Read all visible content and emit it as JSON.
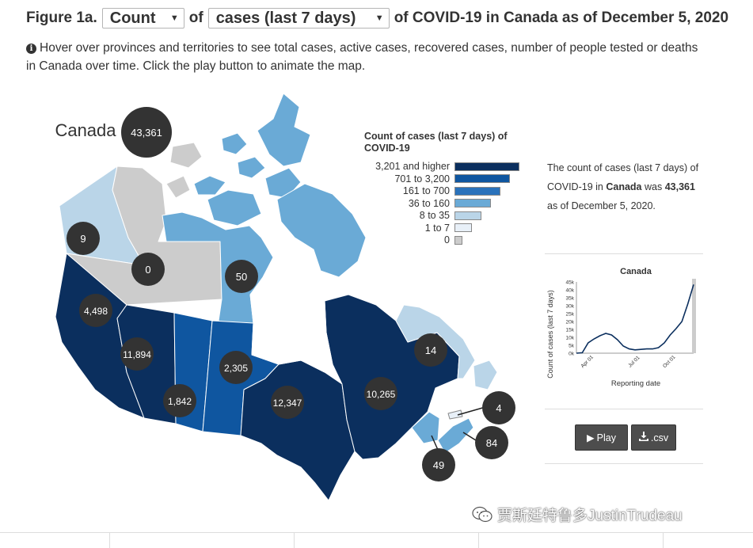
{
  "header": {
    "figure_label": "Figure 1a.",
    "measure_select": "Count",
    "of_text": "of",
    "metric_select": "cases (last 7 days)",
    "title_rest": "of COVID-19 in Canada as of December 5, 2020"
  },
  "subtitle": "Hover over provinces and territories to see total cases, active cases, recovered cases, number of people tested or deaths in Canada over time. Click the play button to animate the map.",
  "map": {
    "country_name": "Canada",
    "country_total": "43,361",
    "regions": [
      {
        "name": "Yukon",
        "value": "9",
        "category": "8 to 35"
      },
      {
        "name": "Northwest Territories",
        "value": "0",
        "category": "0"
      },
      {
        "name": "Nunavut",
        "value": "50",
        "category": "36 to 160"
      },
      {
        "name": "British Columbia",
        "value": "4,498",
        "category": "3,201 and higher"
      },
      {
        "name": "Alberta",
        "value": "11,894",
        "category": "3,201 and higher"
      },
      {
        "name": "Saskatchewan",
        "value": "1,842",
        "category": "701 to 3,200"
      },
      {
        "name": "Manitoba",
        "value": "2,305",
        "category": "701 to 3,200"
      },
      {
        "name": "Ontario",
        "value": "12,347",
        "category": "3,201 and higher"
      },
      {
        "name": "Quebec",
        "value": "10,265",
        "category": "3,201 and higher"
      },
      {
        "name": "Newfoundland and Labrador",
        "value": "14",
        "category": "8 to 35"
      },
      {
        "name": "Prince Edward Island",
        "value": "4",
        "category": "1 to 7"
      },
      {
        "name": "Nova Scotia",
        "value": "84",
        "category": "36 to 160"
      },
      {
        "name": "New Brunswick",
        "value": "49",
        "category": "36 to 160"
      }
    ]
  },
  "legend": {
    "title": "Count of cases (last 7 days) of COVID-19",
    "items": [
      {
        "label": "3,201 and higher",
        "color": "#0b2f5e"
      },
      {
        "label": "701 to 3,200",
        "color": "#0f56a0"
      },
      {
        "label": "161 to 700",
        "color": "#2a72bb"
      },
      {
        "label": "36 to 160",
        "color": "#6aaad6"
      },
      {
        "label": "8 to 35",
        "color": "#bad5e8"
      },
      {
        "label": "1 to 7",
        "color": "#e8f0f8"
      },
      {
        "label": "0",
        "color": "#cccccc"
      }
    ]
  },
  "summary": {
    "prefix": "The count of cases (last 7 days) of COVID-19 in",
    "place": "Canada",
    "middle": "was",
    "value": "43,361",
    "suffix": "as of December 5, 2020."
  },
  "mini_chart": {
    "title": "Canada",
    "ylabel": "Count of cases (last 7 days)",
    "xlabel": "Reporting date",
    "yticks": [
      "0k",
      "5k",
      "10k",
      "15k",
      "20k",
      "25k",
      "30k",
      "35k",
      "40k",
      "45k"
    ],
    "xticks": [
      "Apr 01",
      "Jul 01",
      "Oct 01"
    ]
  },
  "chart_data": {
    "type": "line",
    "title": "Canada",
    "xlabel": "Reporting date",
    "ylabel": "Count of cases (last 7 days)",
    "ylim": [
      0,
      45000
    ],
    "x": [
      "Mar 01",
      "Mar 15",
      "Apr 01",
      "Apr 08",
      "Apr 15",
      "Apr 22",
      "May 01",
      "May 15",
      "Jun 01",
      "Jun 15",
      "Jul 01",
      "Jul 15",
      "Aug 01",
      "Aug 15",
      "Sep 01",
      "Sep 15",
      "Oct 01",
      "Oct 15",
      "Nov 01",
      "Nov 15",
      "Dec 05"
    ],
    "series": [
      {
        "values": [
          0,
          300,
          6500,
          9000,
          11000,
          12500,
          11500,
          8500,
          4500,
          2700,
          2100,
          2400,
          2700,
          2700,
          3500,
          6500,
          11500,
          15500,
          20000,
          31000,
          43361
        ]
      }
    ]
  },
  "buttons": {
    "play": "Play",
    "csv": ".csv"
  },
  "watermark": "贾斯廷特鲁多JustinTrudeau"
}
